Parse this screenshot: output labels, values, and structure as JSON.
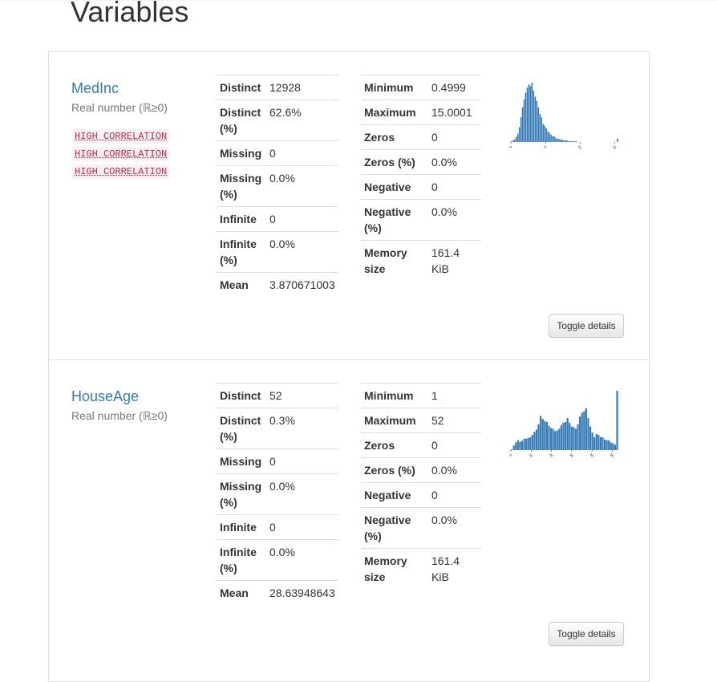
{
  "page": {
    "title": "Variables"
  },
  "variables": [
    {
      "name": "MedInc",
      "type": "Real number (ℝ≥0)",
      "alerts": [
        "HIGH CORRELATION",
        "HIGH CORRELATION",
        "HIGH CORRELATION"
      ],
      "stats_left": [
        {
          "label": "Distinct",
          "value": "12928"
        },
        {
          "label": "Distinct (%)",
          "value": "62.6%"
        },
        {
          "label": "Missing",
          "value": "0"
        },
        {
          "label": "Missing (%)",
          "value": "0.0%"
        },
        {
          "label": "Infinite",
          "value": "0"
        },
        {
          "label": "Infinite (%)",
          "value": "0.0%"
        },
        {
          "label": "Mean",
          "value": "3.870671003"
        }
      ],
      "stats_right": [
        {
          "label": "Minimum",
          "value": "0.4999"
        },
        {
          "label": "Maximum",
          "value": "15.0001"
        },
        {
          "label": "Zeros",
          "value": "0"
        },
        {
          "label": "Zeros (%)",
          "value": "0.0%"
        },
        {
          "label": "Negative",
          "value": "0"
        },
        {
          "label": "Negative (%)",
          "value": "0.0%"
        },
        {
          "label": "Memory size",
          "value": "161.4 KiB"
        }
      ],
      "toggle_label": "Toggle details",
      "chart_data": {
        "type": "bar",
        "color": "#337ab7",
        "tick_labels": [
          "0",
          "5",
          "10",
          "15"
        ],
        "xlim": [
          0,
          15.5
        ],
        "values": [
          1,
          2,
          3,
          6,
          10,
          18,
          30,
          42,
          52,
          60,
          66,
          70,
          68,
          72,
          62,
          55,
          50,
          42,
          34,
          30,
          22,
          20,
          17,
          13,
          11,
          9,
          7,
          7,
          5,
          4,
          4,
          3,
          3,
          2,
          2,
          2,
          1,
          1,
          1,
          1,
          1,
          1,
          0,
          0,
          0,
          0,
          0,
          0,
          0,
          0,
          0,
          0,
          0,
          0,
          0,
          0,
          0,
          0,
          0,
          0,
          0,
          0,
          0,
          0,
          0,
          0,
          0,
          4
        ]
      }
    },
    {
      "name": "HouseAge",
      "type": "Real number (ℝ≥0)",
      "alerts": [],
      "stats_left": [
        {
          "label": "Distinct",
          "value": "52"
        },
        {
          "label": "Distinct (%)",
          "value": "0.3%"
        },
        {
          "label": "Missing",
          "value": "0"
        },
        {
          "label": "Missing (%)",
          "value": "0.0%"
        },
        {
          "label": "Infinite",
          "value": "0"
        },
        {
          "label": "Infinite (%)",
          "value": "0.0%"
        },
        {
          "label": "Mean",
          "value": "28.63948643"
        }
      ],
      "stats_right": [
        {
          "label": "Minimum",
          "value": "1"
        },
        {
          "label": "Maximum",
          "value": "52"
        },
        {
          "label": "Zeros",
          "value": "0"
        },
        {
          "label": "Zeros (%)",
          "value": "0.0%"
        },
        {
          "label": "Negative",
          "value": "0"
        },
        {
          "label": "Negative (%)",
          "value": "0.0%"
        },
        {
          "label": "Memory size",
          "value": "161.4 KiB"
        }
      ],
      "toggle_label": "Toggle details",
      "chart_data": {
        "type": "bar",
        "color": "#337ab7",
        "tick_labels": [
          "0",
          "10",
          "20",
          "30",
          "40",
          "50"
        ],
        "xlim": [
          0,
          53
        ],
        "values": [
          1,
          6,
          10,
          13,
          11,
          12,
          15,
          15,
          16,
          17,
          20,
          24,
          27,
          34,
          45,
          41,
          38,
          37,
          32,
          29,
          28,
          25,
          26,
          28,
          33,
          36,
          37,
          42,
          36,
          31,
          30,
          28,
          34,
          44,
          49,
          51,
          55,
          42,
          31,
          23,
          17,
          21,
          20,
          17,
          17,
          14,
          13,
          13,
          10,
          9,
          7,
          78
        ]
      }
    }
  ]
}
